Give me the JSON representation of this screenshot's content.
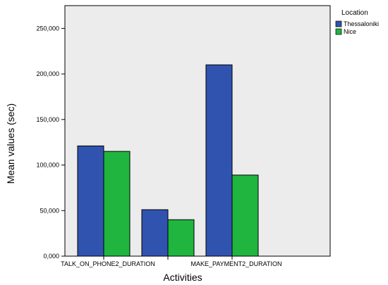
{
  "chart_data": {
    "type": "bar",
    "categories": [
      "TALK_ON_PHONE2_DURATION",
      "",
      "MAKE_PAYMENT2_DURATION"
    ],
    "series": [
      {
        "name": "Thessaloniki",
        "color": "#3153b0",
        "values": [
          121000,
          51000,
          210000
        ]
      },
      {
        "name": "Nice",
        "color": "#1fb53f",
        "values": [
          115000,
          40000,
          89000
        ]
      }
    ],
    "ylim": [
      0,
      275000
    ],
    "yticks": [
      0,
      50000,
      100000,
      150000,
      200000,
      250000
    ],
    "ytick_labels": [
      "0,000",
      "50,000",
      "100,000",
      "150,000",
      "200,000",
      "250,000"
    ],
    "xlabel": "Activities",
    "ylabel": "Mean values (sec)",
    "legend": {
      "title": "Location",
      "placement": "right"
    },
    "plot_background": "#ececec",
    "grid": false
  }
}
